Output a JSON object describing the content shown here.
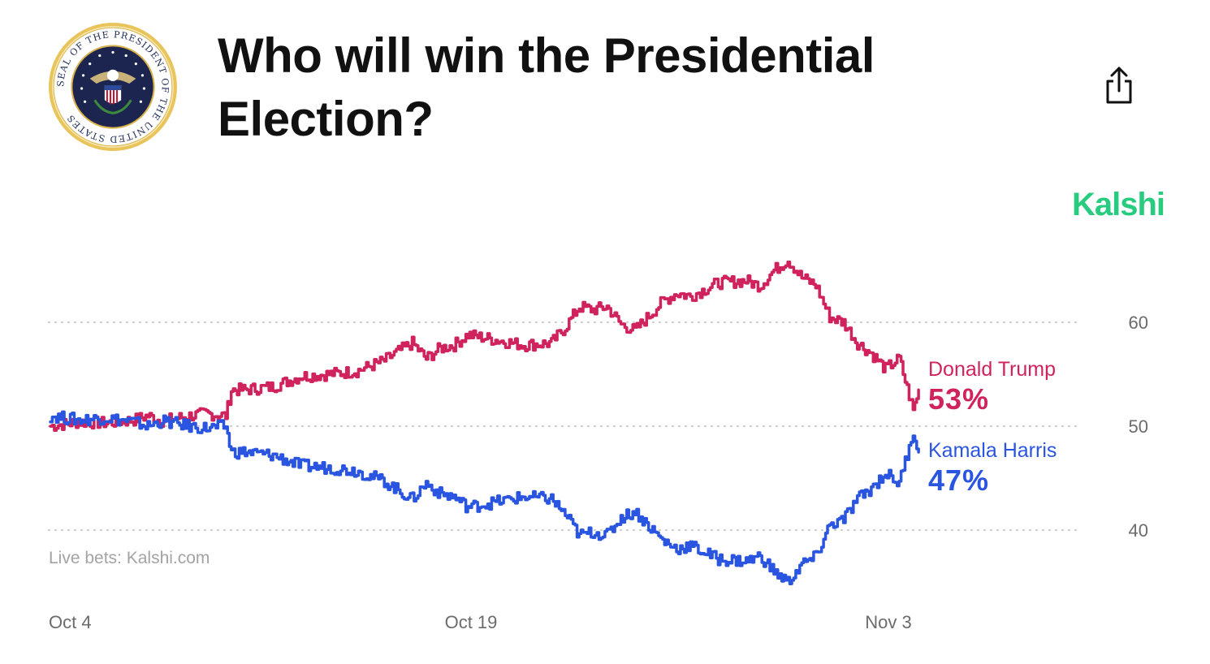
{
  "header": {
    "title": "Who will win the Presidential Election?",
    "seal_text": "SEAL OF THE PRESIDENT OF THE UNITED STATES",
    "brand": "Kalshi"
  },
  "colors": {
    "trump": "#d0235e",
    "harris": "#2a55e0",
    "brand": "#28cc7e",
    "grid": "#c8c8c8",
    "tick": "#6b6b6b"
  },
  "source": "Live bets: Kalshi.com",
  "chart_data": {
    "type": "line",
    "title": "Who will win the Presidential Election?",
    "xlabel": "",
    "ylabel": "",
    "x_range_days": [
      0,
      31.7
    ],
    "ylim": [
      34,
      68
    ],
    "y_ticks": [
      40,
      50,
      60
    ],
    "y_tick_labels": [
      "40",
      "50",
      "60"
    ],
    "x_ticks": [
      {
        "label": "Oct 4",
        "day": 0
      },
      {
        "label": "Oct 19",
        "day": 15
      },
      {
        "label": "Nov 3",
        "day": 30
      }
    ],
    "grid": "horizontal dotted",
    "series": [
      {
        "name": "Donald Trump",
        "label": "53%",
        "color": "#d0235e",
        "x": [
          0,
          1,
          2,
          3,
          3.5,
          4,
          5,
          5.6,
          6.3,
          6.5,
          7,
          8,
          9,
          10,
          11,
          12,
          12.5,
          13,
          13.5,
          14,
          14.5,
          15,
          16,
          17,
          18,
          18.5,
          19,
          19.5,
          20,
          20.5,
          21,
          22,
          22.5,
          23,
          24,
          25,
          25.5,
          26,
          26.5,
          27,
          27.5,
          28,
          28.5,
          29,
          29.5,
          30,
          30.5,
          31,
          31.2
        ],
        "y": [
          50,
          50.4,
          50.3,
          50.6,
          51,
          50.5,
          51,
          51.2,
          51,
          53.5,
          53.5,
          53.8,
          54.8,
          55,
          55.3,
          56.3,
          57.2,
          58,
          56.5,
          57.5,
          57.8,
          58.8,
          58.3,
          57.8,
          58,
          59.5,
          61.5,
          61.2,
          61.5,
          59.8,
          59.2,
          62,
          62.8,
          62.5,
          63.8,
          64,
          63.5,
          65,
          66,
          64.3,
          63.6,
          60.5,
          60,
          58,
          57,
          55.5,
          56.5,
          51.5,
          53.5
        ]
      },
      {
        "name": "Kamala Harris",
        "label": "47%",
        "color": "#2a55e0",
        "x": [
          0,
          1,
          2,
          3,
          3.5,
          4,
          5,
          5.6,
          6.3,
          6.5,
          7,
          8,
          9,
          10,
          11,
          12,
          12.5,
          13,
          13.5,
          14,
          14.5,
          15,
          16,
          17,
          18,
          18.5,
          19,
          19.5,
          20,
          20.5,
          21,
          22,
          22.5,
          23,
          24,
          25,
          25.5,
          26,
          26.5,
          27,
          27.5,
          28,
          28.5,
          29,
          29.5,
          30,
          30.5,
          31,
          31.2
        ],
        "y": [
          51,
          50.6,
          50.8,
          50.4,
          50,
          50.5,
          50,
          49.8,
          50,
          47.5,
          47.5,
          47.2,
          46.2,
          46,
          45.7,
          44.7,
          43.8,
          43,
          44.5,
          43.5,
          43.2,
          42.2,
          42.7,
          43.2,
          43,
          41.5,
          39.5,
          39.8,
          39.5,
          41.2,
          41.8,
          39,
          38.2,
          38.5,
          37.2,
          37,
          37.5,
          36,
          35,
          36.7,
          37.4,
          40.5,
          41,
          43,
          44,
          45.5,
          44.5,
          49.5,
          47.5
        ]
      }
    ]
  }
}
